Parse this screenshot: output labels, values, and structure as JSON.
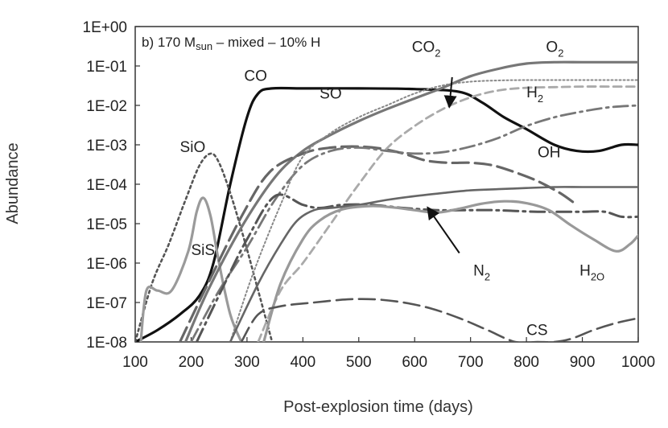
{
  "chart_data": {
    "type": "line",
    "title": "b) 170 M_sun – mixed – 10% H",
    "title_parts": {
      "prefix": "b) 170 M",
      "subscript": "sun",
      "suffix": " – mixed – 10% H"
    },
    "xlabel": "Post-explosion time (days)",
    "ylabel": "Abundance",
    "xlim": [
      100,
      1000
    ],
    "ylim_log10": [
      -8,
      0
    ],
    "x_ticks": [
      "100",
      "200",
      "300",
      "400",
      "500",
      "600",
      "700",
      "800",
      "900",
      "1000"
    ],
    "y_ticks": [
      "1E-08",
      "1E-07",
      "1E-06",
      "1E-05",
      "1E-04",
      "1E-03",
      "1E-02",
      "1E-01",
      "1E+00"
    ],
    "grid": false,
    "series": [
      {
        "name": "CO",
        "color": "#111111",
        "dash": "solid",
        "width": 3.2,
        "x": [
          100,
          140,
          180,
          215,
          240,
          270,
          300,
          320,
          345,
          400,
          500,
          600,
          680,
          720,
          760,
          800,
          850,
          890,
          930,
          970,
          1000
        ],
        "y": [
          1e-08,
          2e-08,
          5e-08,
          1.5e-07,
          1e-06,
          0.0001,
          0.005,
          0.02,
          0.027,
          0.027,
          0.027,
          0.026,
          0.022,
          0.012,
          0.005,
          0.0025,
          0.001,
          0.0007,
          0.0007,
          0.001,
          0.001
        ]
      },
      {
        "name": "SiO",
        "color": "#555555",
        "dash": "dot",
        "width": 2.6,
        "x": [
          100,
          130,
          160,
          190,
          215,
          235,
          250,
          270,
          295,
          320,
          345
        ],
        "y": [
          1e-08,
          3e-07,
          3e-06,
          4e-05,
          0.0003,
          0.0006,
          0.00035,
          6e-05,
          4e-06,
          2e-07,
          1e-08
        ]
      },
      {
        "name": "SiS",
        "color": "#9a9a9a",
        "dash": "solid",
        "width": 3.2,
        "x": [
          110,
          120,
          140,
          165,
          195,
          210,
          222,
          235,
          250,
          270,
          290
        ],
        "y": [
          1e-08,
          2e-07,
          2e-07,
          2e-07,
          2e-06,
          2e-05,
          4.5e-05,
          1.5e-05,
          1e-06,
          5e-08,
          1e-08
        ]
      },
      {
        "name": "O2",
        "color": "#777777",
        "dash": "solid",
        "width": 3.2,
        "x": [
          190,
          230,
          290,
          350,
          400,
          450,
          500,
          550,
          600,
          650,
          700,
          750,
          800,
          850,
          900,
          950,
          1000
        ],
        "y": [
          1e-08,
          2e-07,
          8e-06,
          0.00015,
          0.0007,
          0.0018,
          0.004,
          0.008,
          0.015,
          0.028,
          0.055,
          0.085,
          0.115,
          0.125,
          0.125,
          0.125,
          0.125
        ]
      },
      {
        "name": "SO",
        "color": "#666666",
        "dash": "longdash",
        "width": 3.2,
        "x": [
          180,
          230,
          290,
          340,
          400,
          450,
          500,
          540,
          580,
          620,
          660,
          700,
          740,
          780,
          820,
          860,
          890
        ],
        "y": [
          1e-08,
          3e-07,
          1.5e-05,
          0.0002,
          0.0006,
          0.00085,
          0.0009,
          0.0008,
          0.0006,
          0.0004,
          0.00035,
          0.00035,
          0.0003,
          0.0002,
          0.00012,
          6e-05,
          3e-05
        ]
      },
      {
        "name": "CO2",
        "color": "#aaaaaa",
        "dash": "dash",
        "width": 2.8,
        "x": [
          320,
          360,
          400,
          450,
          500,
          550,
          600,
          650,
          700,
          750,
          800,
          850,
          900,
          950,
          1000
        ],
        "y": [
          1e-08,
          2e-07,
          1e-06,
          1e-05,
          0.0001,
          0.0008,
          0.003,
          0.008,
          0.016,
          0.024,
          0.028,
          0.029,
          0.03,
          0.03,
          0.03
        ]
      },
      {
        "name": "H2",
        "color": "#777777",
        "dash": "dashdot",
        "width": 2.8,
        "x": [
          200,
          250,
          300,
          350,
          400,
          450,
          500,
          550,
          600,
          650,
          700,
          750,
          800,
          850,
          900,
          950,
          1000
        ],
        "y": [
          1e-08,
          2e-07,
          2.5e-06,
          4e-05,
          0.0003,
          0.0007,
          0.00085,
          0.0007,
          0.0006,
          0.00065,
          0.0009,
          0.0015,
          0.003,
          0.005,
          0.007,
          0.009,
          0.01
        ]
      },
      {
        "name": "dotted (CO2 region)",
        "color": "#888888",
        "dash": "finedot",
        "width": 2.0,
        "x": [
          270,
          310,
          360,
          400,
          450,
          500,
          550,
          600,
          650,
          700,
          750,
          800,
          850,
          900,
          950,
          1000
        ],
        "y": [
          1e-08,
          5e-07,
          3e-05,
          0.0005,
          0.002,
          0.005,
          0.01,
          0.02,
          0.032,
          0.04,
          0.043,
          0.044,
          0.044,
          0.044,
          0.044,
          0.044
        ]
      },
      {
        "name": "OH",
        "color": "#555555",
        "dash": "dashdot",
        "width": 3.0,
        "x": [
          210,
          260,
          300,
          350,
          400,
          430,
          470,
          520,
          580,
          640,
          700,
          740,
          780,
          820,
          860,
          900,
          940,
          970,
          1000
        ],
        "y": [
          1e-08,
          3e-07,
          4e-06,
          5e-05,
          3e-05,
          2.5e-05,
          3e-05,
          3e-05,
          2.5e-05,
          2.2e-05,
          2.2e-05,
          2.2e-05,
          2.1e-05,
          2e-05,
          2e-05,
          2e-05,
          2e-05,
          1.5e-05,
          1.5e-05
        ]
      },
      {
        "name": "N2",
        "color": "#666666",
        "dash": "solid",
        "width": 2.6,
        "x": [
          270,
          320,
          360,
          390,
          420,
          450,
          500,
          550,
          600,
          650,
          700,
          750,
          800,
          850,
          900,
          950,
          1000
        ],
        "y": [
          1e-08,
          3e-07,
          3e-06,
          1.2e-05,
          2.2e-05,
          2.5e-05,
          3e-05,
          4e-05,
          5e-05,
          6e-05,
          7e-05,
          7.5e-05,
          8e-05,
          8.5e-05,
          8.5e-05,
          8.5e-05,
          8.5e-05
        ]
      },
      {
        "name": "H2O",
        "color": "#999999",
        "dash": "solid",
        "width": 3.2,
        "x": [
          330,
          360,
          400,
          430,
          470,
          520,
          560,
          600,
          640,
          680,
          720,
          760,
          800,
          840,
          880,
          920,
          960,
          985,
          1000
        ],
        "y": [
          1e-08,
          3e-07,
          4e-06,
          1.2e-05,
          2.3e-05,
          2.8e-05,
          2.6e-05,
          2.2e-05,
          1.9e-05,
          2.4e-05,
          3.2e-05,
          3.7e-05,
          3.3e-05,
          2.2e-05,
          9e-06,
          4e-06,
          2e-06,
          3e-06,
          5e-06
        ]
      },
      {
        "name": "CS",
        "color": "#555555",
        "dash": "longdash",
        "width": 2.6,
        "x": [
          290,
          320,
          360,
          420,
          480,
          530,
          580,
          630,
          680,
          730,
          780,
          820,
          850,
          880,
          920,
          960,
          1000
        ],
        "y": [
          1e-08,
          5e-08,
          8e-08,
          1e-07,
          1.2e-07,
          1.2e-07,
          1e-07,
          7e-08,
          4e-08,
          2e-08,
          1e-08,
          1e-08,
          1e-08,
          1.2e-08,
          2e-08,
          3e-08,
          4e-08
        ]
      }
    ],
    "annotations": [
      {
        "text": "CO",
        "x": 295,
        "y": 0.042
      },
      {
        "text": "SiO",
        "x": 180,
        "y": 0.00065
      },
      {
        "text": "SiS",
        "x": 200,
        "y": 1.6e-06
      },
      {
        "text": "SO",
        "x": 430,
        "y": 0.015
      },
      {
        "text": "OH",
        "x": 820,
        "y": 0.00048
      },
      {
        "text": "CS",
        "x": 800,
        "y": 1.5e-08
      }
    ],
    "subscript_labels": [
      {
        "base": "CO",
        "sub": "2",
        "x": 595,
        "y": 0.23
      },
      {
        "base": "O",
        "sub": "2",
        "x": 835,
        "y": 0.23
      },
      {
        "base": "H",
        "sub": "2",
        "x": 800,
        "y": 0.016
      },
      {
        "base": "N",
        "sub": "2",
        "x": 705,
        "y": 4.8e-07
      },
      {
        "base": "H",
        "sub": "2O",
        "x": 895,
        "y": 4.8e-07
      }
    ],
    "arrows": [
      {
        "label": "CO2",
        "from": [
          667,
          0.052
        ],
        "to": [
          662,
          0.009
        ]
      },
      {
        "label": "N2",
        "from": [
          680,
          1.8e-06
        ],
        "to": [
          623,
          2.6e-05
        ]
      }
    ]
  }
}
